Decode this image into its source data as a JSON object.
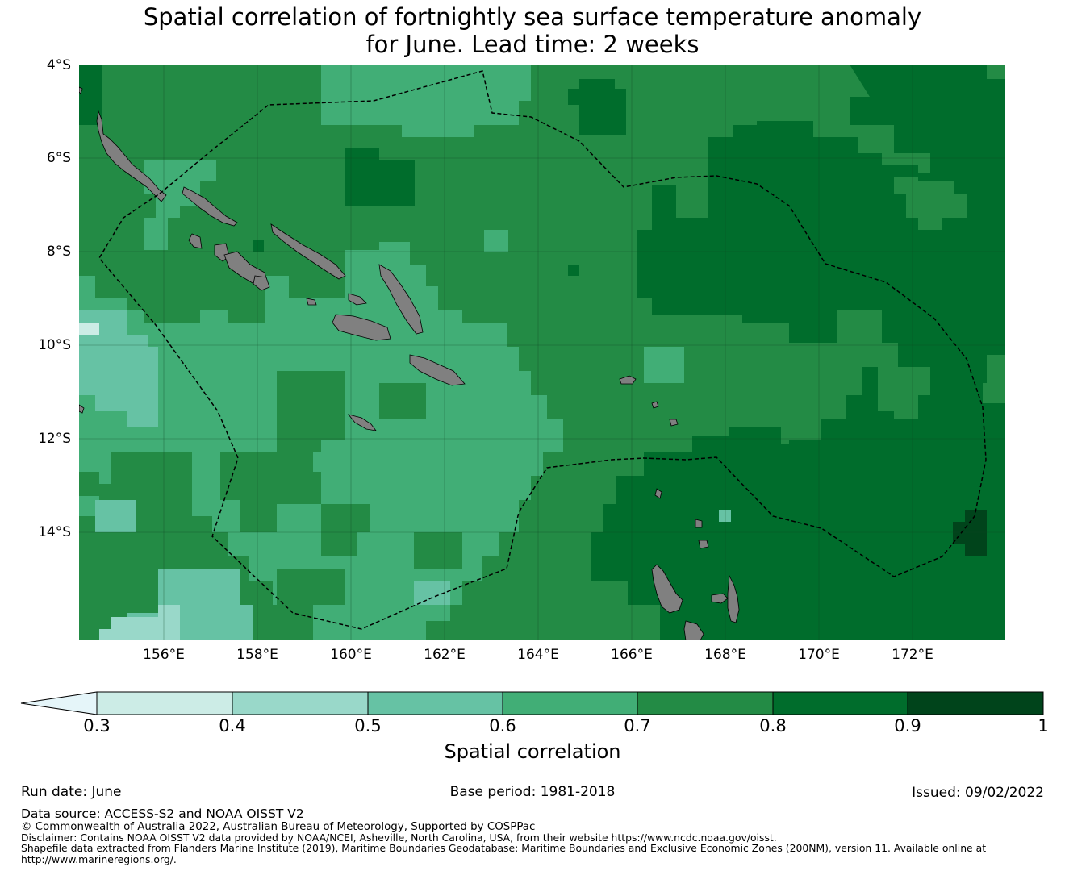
{
  "title": {
    "line1": "Spatial correlation of fortnightly sea surface temperature anomaly",
    "line2": "for June. Lead time: 2 weeks"
  },
  "map": {
    "lat_labels": [
      "4°S",
      "6°S",
      "8°S",
      "10°S",
      "12°S",
      "14°S"
    ],
    "lon_labels": [
      "156°E",
      "158°E",
      "160°E",
      "162°E",
      "164°E",
      "166°E",
      "168°E",
      "170°E",
      "172°E"
    ],
    "lon_range": [
      154.2,
      174.0
    ],
    "lat_range": [
      -4.0,
      -16.3
    ],
    "land_color": "#808080",
    "eez_boundary_style": "dashed"
  },
  "colorbar": {
    "label": "Spatial correlation",
    "ticks": [
      "0.3",
      "0.4",
      "0.5",
      "0.6",
      "0.7",
      "0.8",
      "0.9",
      "1"
    ],
    "colors": [
      "#ccece6",
      "#99d8c9",
      "#66c2a4",
      "#41ae76",
      "#238b45",
      "#006d2c",
      "#00441b"
    ],
    "under_color": "#e5f5f9",
    "extend": "min"
  },
  "footer": {
    "run_date": "Run date: June",
    "base_period": "Base period: 1981-2018",
    "issued": "Issued: 09/02/2022",
    "data_source": "Data source: ACCESS-S2 and NOAA OISST V2",
    "copyright": "© Commonwealth of Australia 2022, Australian Bureau of Meteorology, Supported by COSPPac",
    "disclaimer": "Disclaimer: Contains NOAA OISST V2 data provided by NOAA/NCEI, Asheville, North Carolina, USA, from their website https://www.ncdc.noaa.gov/oisst.",
    "shapefile_line1": "Shapefile data extracted from Flanders Marine Institute (2019), Maritime Boundaries Geodatabase: Maritime Boundaries and Exclusive Economic Zones (200NM), version 11. Available online at",
    "shapefile_line2": "http://www.marineregions.org/."
  }
}
